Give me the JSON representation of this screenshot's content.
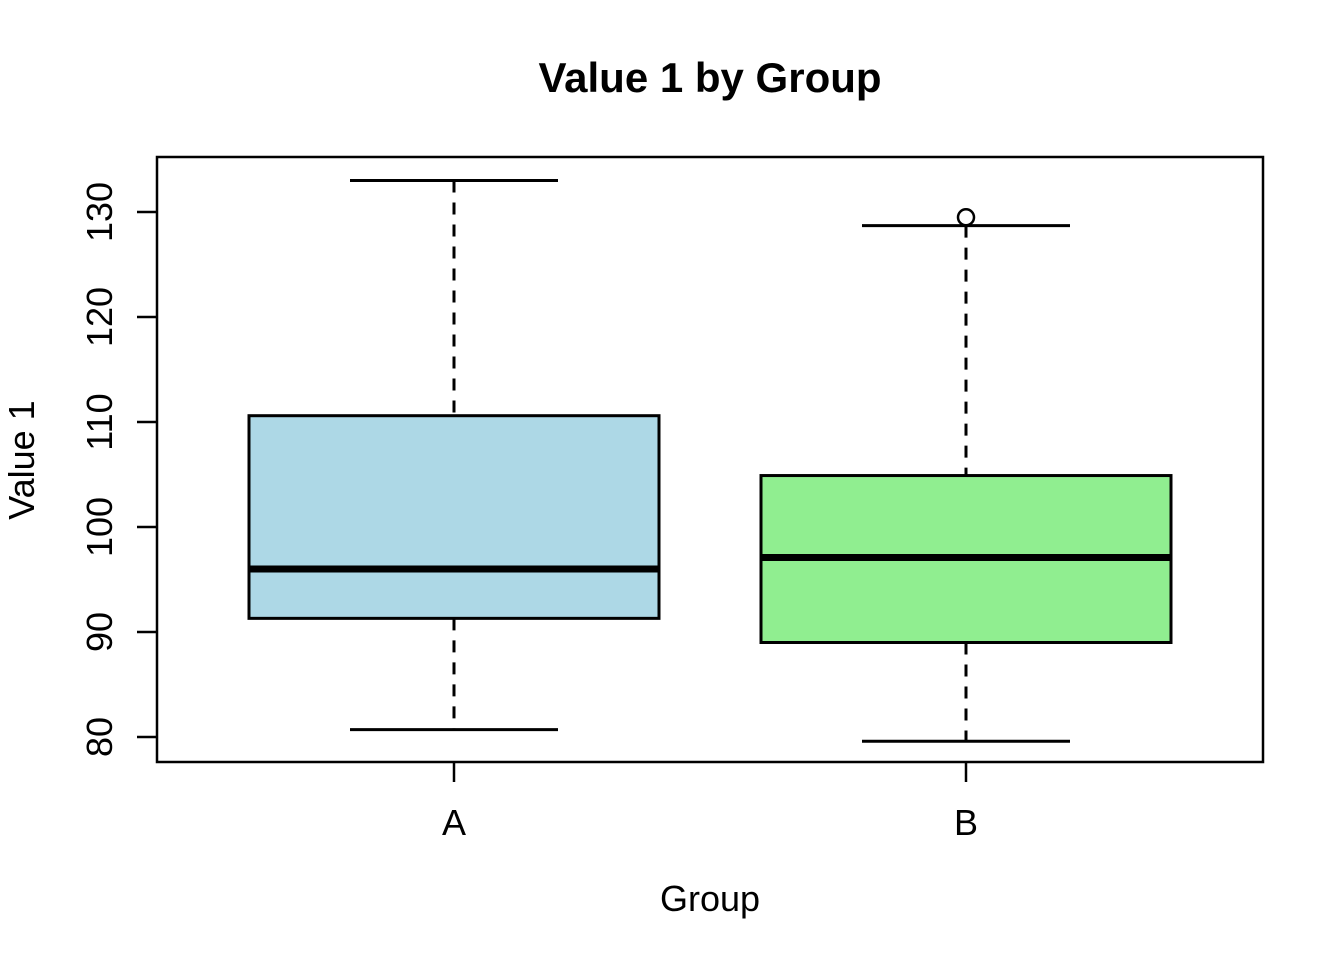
{
  "figure": {
    "background_color": "#FFFFFF",
    "frame_color": "#000000"
  },
  "chart_data": {
    "type": "boxplot",
    "title": "Value 1 by Group",
    "xlabel": "Group",
    "ylabel": "Value 1",
    "categories": [
      "A",
      "B"
    ],
    "series": [
      {
        "name": "A",
        "fill": "#ADD8E6",
        "lower_whisker": 80.7,
        "q1": 91.3,
        "median": 96.0,
        "q3": 110.6,
        "upper_whisker": 133.0,
        "outliers": []
      },
      {
        "name": "B",
        "fill": "#90EE90",
        "lower_whisker": 79.6,
        "q1": 89.0,
        "median": 97.1,
        "q3": 104.9,
        "upper_whisker": 128.7,
        "outliers": [
          129.5
        ]
      }
    ],
    "y_ticks": [
      80,
      90,
      100,
      110,
      120,
      130
    ],
    "ylim": [
      77.6,
      135.2
    ],
    "grid": false,
    "legend_position": "none",
    "stroke_color": "#000000"
  }
}
